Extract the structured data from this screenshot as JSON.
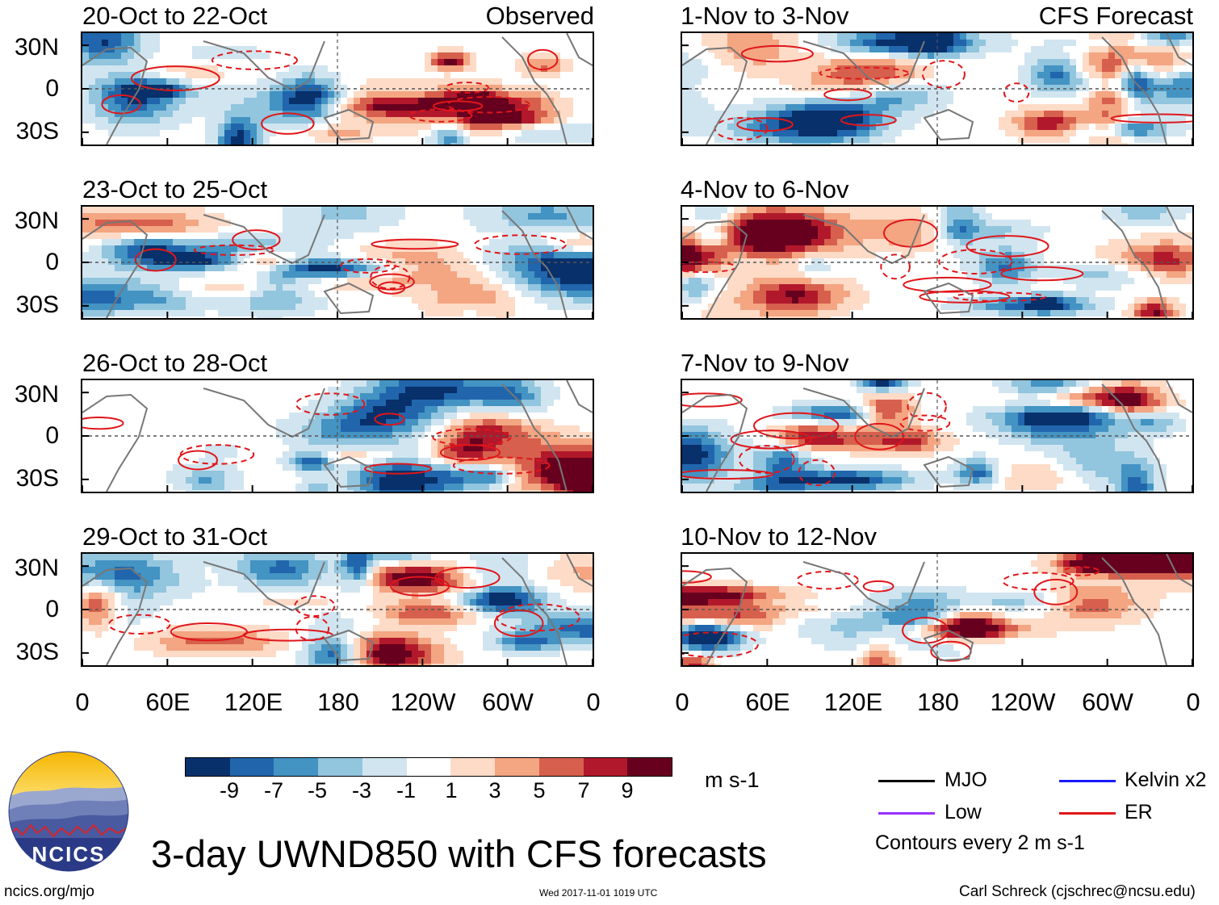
{
  "chart_data": {
    "type": "heatmap",
    "title": "3-day UWND850 with CFS forecasts",
    "variable": "850-hPa zonal wind anomaly",
    "units": "m s-1",
    "x_tick_labels": [
      "0",
      "60E",
      "120E",
      "180",
      "120W",
      "60W",
      "0"
    ],
    "y_tick_labels": [
      "30N",
      "0",
      "30S"
    ],
    "lon_range": [
      0,
      360
    ],
    "lat_range": [
      -40,
      40
    ],
    "colorbar": {
      "levels": [
        "-9",
        "-7",
        "-5",
        "-3",
        "-1",
        "1",
        "3",
        "5",
        "7",
        "9"
      ],
      "colors": [
        "#08306b",
        "#2166ac",
        "#4393c3",
        "#92c5de",
        "#d1e5f0",
        "#ffffff",
        "#fddbc7",
        "#f4a582",
        "#d6604d",
        "#b2182b",
        "#67001f"
      ]
    },
    "columns": [
      {
        "tag": "Observed",
        "panels": [
          {
            "title": "20-Oct to 22-Oct",
            "seed": 11
          },
          {
            "title": "23-Oct to 25-Oct",
            "seed": 23
          },
          {
            "title": "26-Oct to 28-Oct",
            "seed": 37
          },
          {
            "title": "29-Oct to 31-Oct",
            "seed": 41
          }
        ]
      },
      {
        "tag": "CFS Forecast",
        "panels": [
          {
            "title": "1-Nov to 3-Nov",
            "seed": 53
          },
          {
            "title": "4-Nov to 6-Nov",
            "seed": 67
          },
          {
            "title": "7-Nov to 9-Nov",
            "seed": 79
          },
          {
            "title": "10-Nov to 12-Nov",
            "seed": 89
          }
        ]
      }
    ],
    "legend": [
      {
        "label": "MJO",
        "color": "#000000"
      },
      {
        "label": "Kelvin x2",
        "color": "#1a1aff"
      },
      {
        "label": "Low",
        "color": "#9b30ff"
      },
      {
        "label": "ER",
        "color": "#e0161a"
      }
    ],
    "contour_note": "Contours every 2 m s-1"
  },
  "footer": {
    "logo_text": "NCICS",
    "url": "ncics.org/mjo",
    "timestamp": "Wed 2017-11-01 1019 UTC",
    "author": "Carl Schreck (cjschrec@ncsu.edu)"
  }
}
